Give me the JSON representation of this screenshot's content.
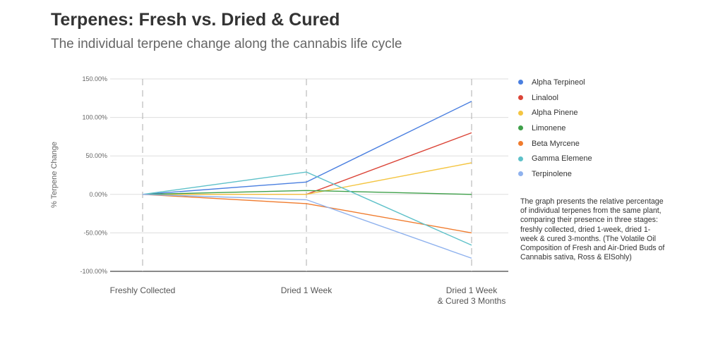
{
  "header": {
    "title": "Terpenes: Fresh vs. Dried & Cured",
    "subtitle": "The individual terpene change along the cannabis life cycle"
  },
  "note": "The graph presents the relative percentage of individual terpenes from the same plant, comparing their presence in three stages: freshly collected, dried 1-week, dried 1-week & cured 3-months. (The Volatile Oil Composition of Fresh and Air-Dried Buds of Cannabis sativa, Ross & ElSohly)",
  "chart_data": {
    "type": "line",
    "title": "Terpenes: Fresh vs. Dried & Cured",
    "subtitle": "The individual terpene change along the cannabis life cycle",
    "xlabel": "",
    "ylabel": "% Terpene Change",
    "categories": [
      [
        "Freshly Collected"
      ],
      [
        "Dried 1 Week"
      ],
      [
        "Dried 1 Week",
        "& Cured 3 Months"
      ]
    ],
    "ylim": [
      -100,
      150
    ],
    "yticks": [
      150,
      100,
      50,
      0,
      -50,
      -100
    ],
    "ytick_labels": [
      "150.00%",
      "100.00%",
      "50.00%",
      "0.00%",
      "-50.00%",
      "-100.00%"
    ],
    "grid": true,
    "legend_position": "right",
    "series": [
      {
        "name": "Alpha Terpineol",
        "color": "#4a7fe0",
        "values": [
          0,
          16,
          121
        ]
      },
      {
        "name": "Linalool",
        "color": "#db4437",
        "values": [
          0,
          0,
          80
        ]
      },
      {
        "name": "Alpha Pinene",
        "color": "#f4c542",
        "values": [
          0,
          0,
          41
        ]
      },
      {
        "name": "Limonene",
        "color": "#3fa04a",
        "values": [
          0,
          5,
          0
        ]
      },
      {
        "name": "Beta Myrcene",
        "color": "#f07b2d",
        "values": [
          0,
          -12,
          -50
        ]
      },
      {
        "name": "Gamma Elemene",
        "color": "#5ec1c9",
        "values": [
          0,
          29,
          -66
        ]
      },
      {
        "name": "Terpinolene",
        "color": "#8fb2ee",
        "values": [
          0,
          -7,
          -83
        ]
      }
    ]
  }
}
